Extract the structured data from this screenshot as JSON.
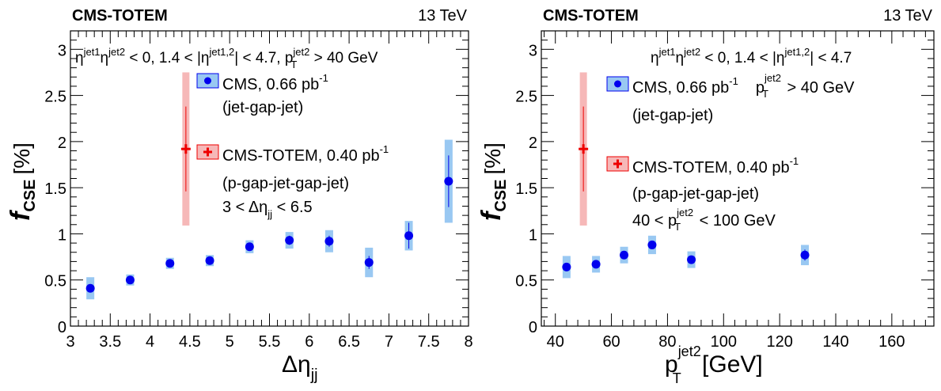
{
  "chart_data": [
    {
      "type": "scatter",
      "experiment_label": "CMS-TOTEM",
      "energy_label": "13 TeV",
      "ylabel_main": "f",
      "ylabel_sub": "CSE",
      "ylabel_unit": "[%]",
      "xlabel_main": "Δη",
      "xlabel_sub": "jj",
      "xlim": [
        3,
        8
      ],
      "ylim": [
        0,
        3.2
      ],
      "xticks": [
        3,
        3.5,
        4,
        4.5,
        5,
        5.5,
        6,
        6.5,
        7,
        7.5,
        8
      ],
      "xtick_labels": [
        "3",
        "3.5",
        "4",
        "4.5",
        "5",
        "5.5",
        "6",
        "6.5",
        "7",
        "7.5",
        "8"
      ],
      "yticks": [
        0,
        0.5,
        1,
        1.5,
        2,
        2.5,
        3
      ],
      "ytick_labels": [
        "0",
        "0.5",
        "1",
        "1.5",
        "2",
        "2.5",
        "3"
      ],
      "selection": {
        "part1": "η",
        "sup1": "jet1",
        "part2": "η",
        "sup2": "jet2",
        "part3": " < 0,  1.4 < |η",
        "sup3": "jet1,2",
        "part4": "| < 4.7, p",
        "sup4": "jet2",
        "sub4": "T",
        "part5": " > 40 GeV"
      },
      "legend": [
        {
          "label": "CMS, 0.66 pb",
          "sup": "-1",
          "line2": "(jet-gap-jet)"
        },
        {
          "label": "CMS-TOTEM, 0.40 pb",
          "sup": "-1",
          "line2": "(p-gap-jet-gap-jet)",
          "line3_pre": "3 < Δη",
          "line3_sub": "jj",
          "line3_post": " < 6.5"
        }
      ],
      "series": [
        {
          "name": "CMS, 0.66 pb-1",
          "color": "#0000ee",
          "band_color": "#99c8f2",
          "points": [
            {
              "x": 3.25,
              "y": 0.41,
              "stat": 0.03,
              "syst": 0.12
            },
            {
              "x": 3.75,
              "y": 0.5,
              "stat": 0.03,
              "syst": 0.06
            },
            {
              "x": 4.25,
              "y": 0.68,
              "stat": 0.03,
              "syst": 0.06
            },
            {
              "x": 4.75,
              "y": 0.71,
              "stat": 0.03,
              "syst": 0.06
            },
            {
              "x": 5.25,
              "y": 0.86,
              "stat": 0.04,
              "syst": 0.07
            },
            {
              "x": 5.75,
              "y": 0.93,
              "stat": 0.05,
              "syst": 0.09
            },
            {
              "x": 6.25,
              "y": 0.92,
              "stat": 0.06,
              "syst": 0.12
            },
            {
              "x": 6.75,
              "y": 0.69,
              "stat": 0.07,
              "syst": 0.16
            },
            {
              "x": 7.25,
              "y": 0.98,
              "stat": 0.14,
              "syst": 0.16
            },
            {
              "x": 7.75,
              "y": 1.57,
              "stat": 0.28,
              "syst": 0.45
            }
          ]
        },
        {
          "name": "CMS-TOTEM, 0.40 pb-1",
          "color": "#ee0000",
          "band_color": "#f6b8b8",
          "points": [
            {
              "x": 4.45,
              "y": 1.92,
              "stat": 0.46,
              "syst": 0.83
            }
          ]
        }
      ]
    },
    {
      "type": "scatter",
      "experiment_label": "CMS-TOTEM",
      "energy_label": "13 TeV",
      "ylabel_main": "f",
      "ylabel_sub": "CSE",
      "ylabel_unit": "[%]",
      "xlabel_main": "p",
      "xlabel_sup": "jet2",
      "xlabel_sub": "T",
      "xlabel_unit": " [GeV]",
      "xlim": [
        35,
        175
      ],
      "ylim": [
        0,
        3.2
      ],
      "xticks": [
        40,
        60,
        80,
        100,
        120,
        140,
        160
      ],
      "xtick_labels": [
        "40",
        "60",
        "80",
        "100",
        "120",
        "140",
        "160"
      ],
      "yticks": [
        0,
        0.5,
        1,
        1.5,
        2,
        2.5,
        3
      ],
      "ytick_labels": [
        "0",
        "0.5",
        "1",
        "1.5",
        "2",
        "2.5",
        "3"
      ],
      "selection": {
        "part1": "η",
        "sup1": "jet1",
        "part2": "η",
        "sup2": "jet2",
        "part3": " < 0,  1.4 < |η",
        "sup3": "jet1,2",
        "part4": "| < 4.7"
      },
      "legend": [
        {
          "label": "CMS, 0.66 pb",
          "sup": "-1",
          "extra_pre": "p",
          "extra_sup": "jet2",
          "extra_sub": "T",
          "extra_post": " > 40 GeV",
          "line2": "(jet-gap-jet)"
        },
        {
          "label": "CMS-TOTEM, 0.40 pb",
          "sup": "-1",
          "line2": "(p-gap-jet-gap-jet)",
          "line3_pre": "40 < p",
          "line3_sup": "jet2",
          "line3_sub": "T",
          "line3_post": " < 100 GeV"
        }
      ],
      "series": [
        {
          "name": "CMS, 0.66 pb-1",
          "color": "#0000ee",
          "band_color": "#99c8f2",
          "points": [
            {
              "x": 44,
              "y": 0.64,
              "stat": 0.03,
              "syst": 0.12
            },
            {
              "x": 54.5,
              "y": 0.67,
              "stat": 0.03,
              "syst": 0.09
            },
            {
              "x": 64.5,
              "y": 0.77,
              "stat": 0.03,
              "syst": 0.09
            },
            {
              "x": 74.5,
              "y": 0.88,
              "stat": 0.04,
              "syst": 0.1
            },
            {
              "x": 88.5,
              "y": 0.72,
              "stat": 0.04,
              "syst": 0.09
            },
            {
              "x": 129,
              "y": 0.77,
              "stat": 0.06,
              "syst": 0.11
            }
          ]
        },
        {
          "name": "CMS-TOTEM, 0.40 pb-1",
          "color": "#ee0000",
          "band_color": "#f6b8b8",
          "points": [
            {
              "x": 50,
              "y": 1.92,
              "stat": 0.46,
              "syst": 0.83
            }
          ]
        }
      ]
    }
  ]
}
